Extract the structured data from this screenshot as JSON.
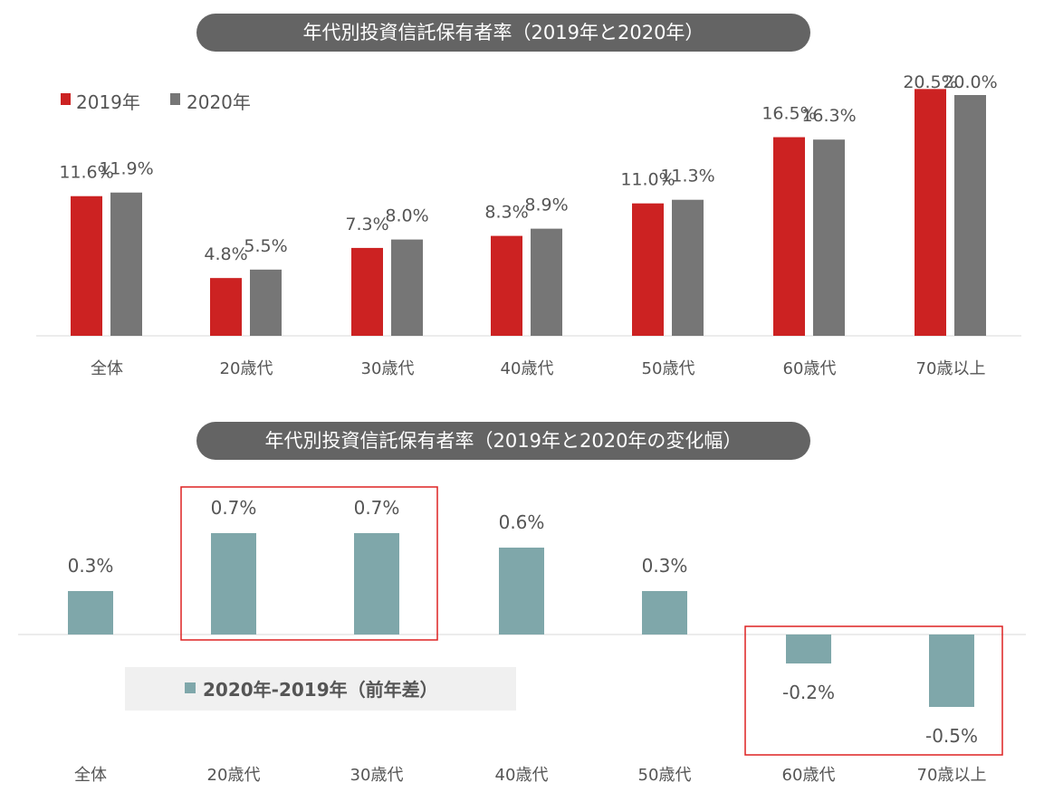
{
  "chart_data": [
    {
      "type": "bar",
      "title": "年代別投資信託保有者率（2019年と2020年）",
      "categories": [
        "全体",
        "20歳代",
        "30歳代",
        "40歳代",
        "50歳代",
        "60歳代",
        "70歳以上"
      ],
      "series": [
        {
          "name": "2019年",
          "color": "#cc2222",
          "values": [
            11.6,
            4.8,
            7.3,
            8.3,
            11.0,
            16.5,
            20.5
          ],
          "labels": [
            "11.6%",
            "4.8%",
            "7.3%",
            "8.3%",
            "11.0%",
            "16.5%",
            "20.5%"
          ]
        },
        {
          "name": "2020年",
          "color": "#767676",
          "values": [
            11.9,
            5.5,
            8.0,
            8.9,
            11.3,
            16.3,
            20.0
          ],
          "labels": [
            "11.9%",
            "5.5%",
            "8.0%",
            "8.9%",
            "11.3%",
            "16.3%",
            "20.0%"
          ]
        }
      ],
      "unit": "%",
      "legend": "top-left",
      "grid": false
    },
    {
      "type": "bar",
      "title": "年代別投資信託保有者率（2019年と2020年の変化幅）",
      "categories": [
        "全体",
        "20歳代",
        "30歳代",
        "40歳代",
        "50歳代",
        "60歳代",
        "70歳以上"
      ],
      "series": [
        {
          "name": "2020年-2019年（前年差）",
          "color": "#7fa7aa",
          "values": [
            0.3,
            0.7,
            0.7,
            0.6,
            0.3,
            -0.2,
            -0.5
          ],
          "labels": [
            "0.3%",
            "0.7%",
            "0.7%",
            "0.6%",
            "0.3%",
            "-0.2%",
            "-0.5%"
          ]
        }
      ],
      "highlights": [
        [
          "20歳代",
          "30歳代"
        ],
        [
          "60歳代",
          "70歳以上"
        ]
      ],
      "highlight_color": "#dd2222",
      "unit": "%",
      "legend": "bottom-left",
      "grid": false
    }
  ]
}
